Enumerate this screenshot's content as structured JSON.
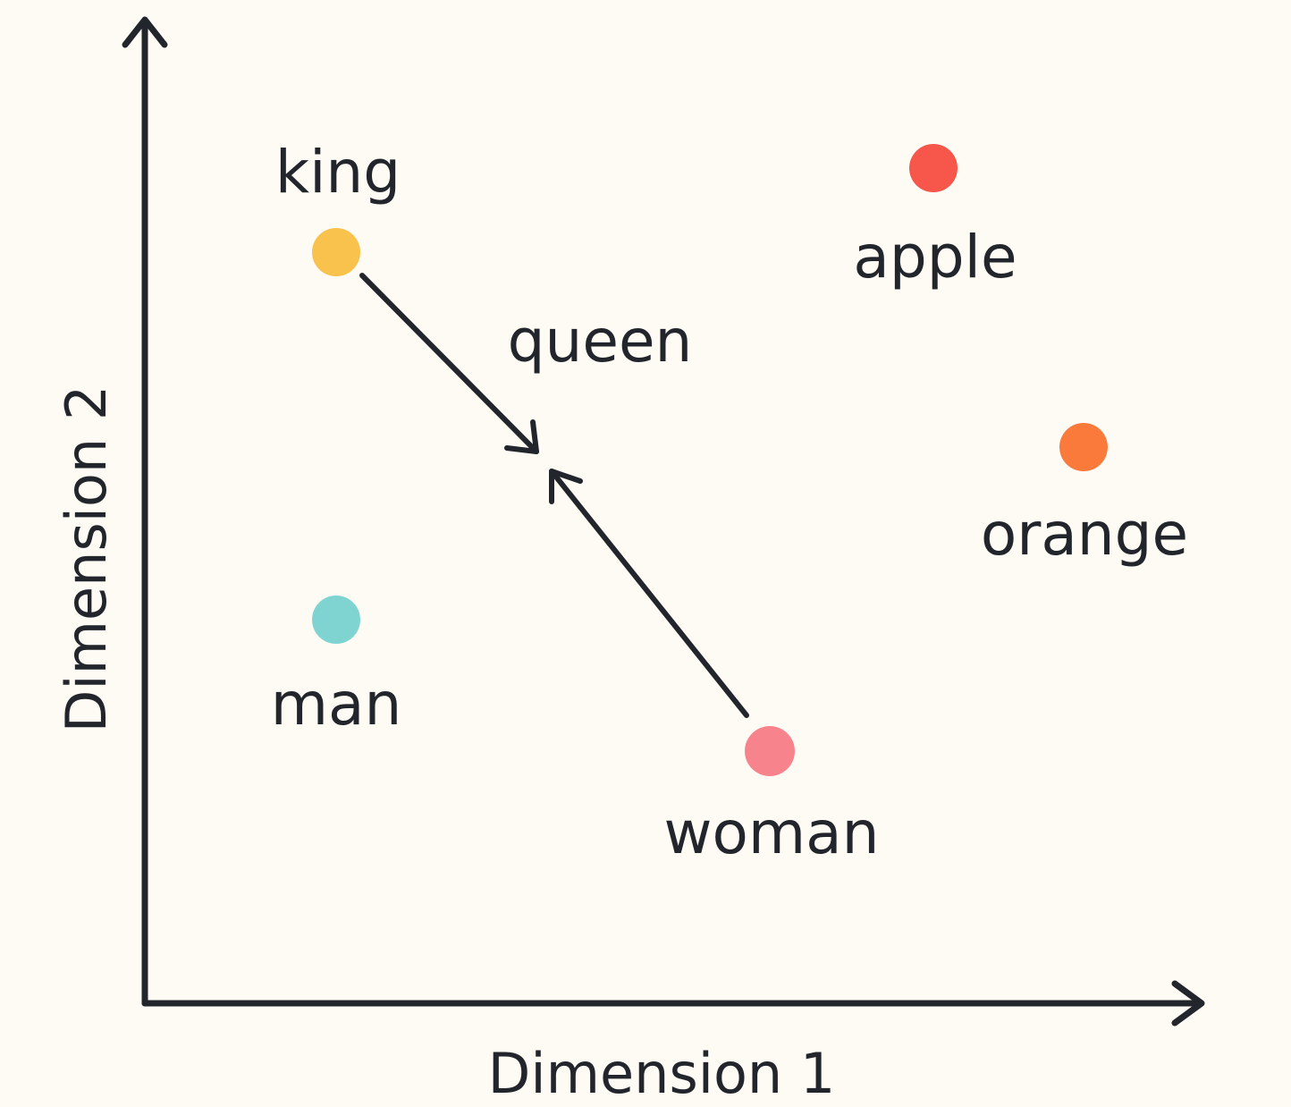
{
  "axes": {
    "x_label": "Dimension 1",
    "y_label": "Dimension 2"
  },
  "colors": {
    "background": "#fdfbf3",
    "ink": "#22252b"
  },
  "points": {
    "king": {
      "label": "king",
      "color": "#f9c24c"
    },
    "apple": {
      "label": "apple",
      "color": "#f7574a"
    },
    "queen": {
      "label": "queen"
    },
    "orange": {
      "label": "orange",
      "color": "#fa7a3c"
    },
    "man": {
      "label": "man",
      "color": "#7fd4d2"
    },
    "woman": {
      "label": "woman",
      "color": "#f7848c"
    }
  },
  "arrows": [
    {
      "from": "king",
      "to": "queen"
    },
    {
      "from": "woman",
      "to": "queen"
    }
  ]
}
